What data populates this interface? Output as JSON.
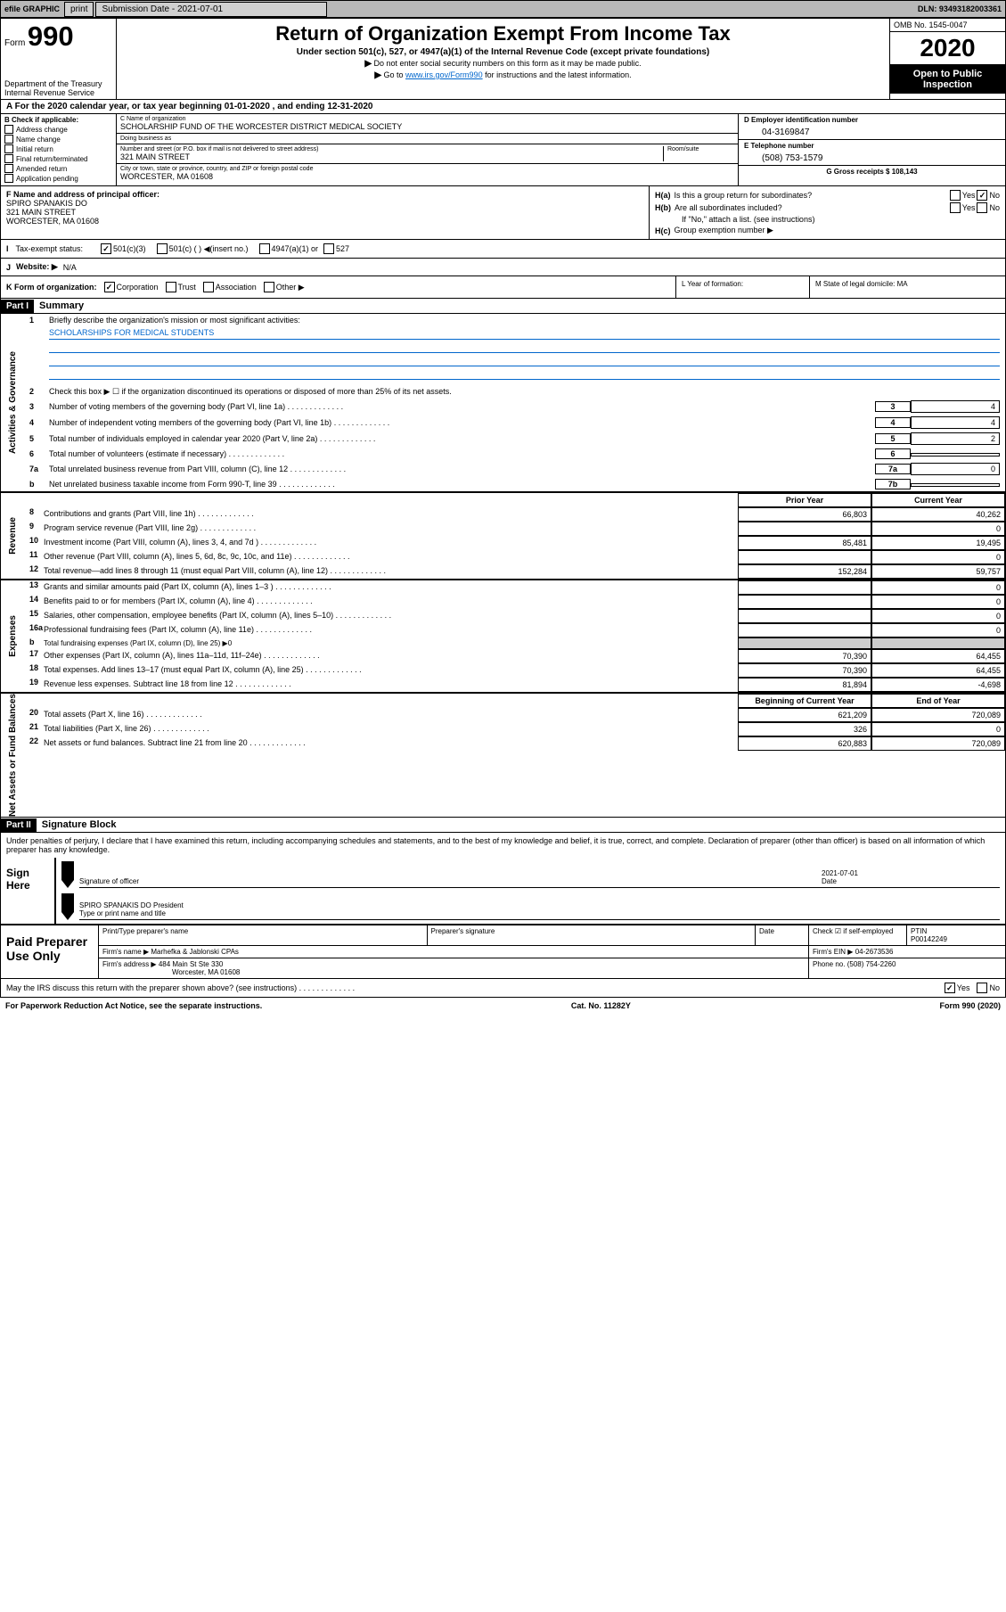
{
  "topbar": {
    "efile": "efile GRAPHIC",
    "print": "print",
    "submission_label": "Submission Date - 2021-07-01",
    "dln_label": "DLN: 93493182003361"
  },
  "header": {
    "form_label": "Form",
    "form_number": "990",
    "dept": "Department of the Treasury",
    "irs": "Internal Revenue Service",
    "title": "Return of Organization Exempt From Income Tax",
    "subtitle": "Under section 501(c), 527, or 4947(a)(1) of the Internal Revenue Code (except private foundations)",
    "line1": "Do not enter social security numbers on this form as it may be made public.",
    "line2_pre": "Go to ",
    "line2_link": "www.irs.gov/Form990",
    "line2_post": " for instructions and the latest information.",
    "omb": "OMB No. 1545-0047",
    "year": "2020",
    "open_public": "Open to Public",
    "inspection": "Inspection"
  },
  "period": {
    "text": "A   For the 2020 calendar year, or tax year beginning 01-01-2020    , and ending 12-31-2020"
  },
  "section_b": {
    "label": "B Check if applicable:",
    "items": [
      "Address change",
      "Name change",
      "Initial return",
      "Final return/terminated",
      "Amended return",
      "Application pending"
    ]
  },
  "section_c": {
    "name_label": "C Name of organization",
    "name": "SCHOLARSHIP FUND OF THE WORCESTER DISTRICT MEDICAL SOCIETY",
    "dba_label": "Doing business as",
    "dba": "",
    "addr_label": "Number and street (or P.O. box if mail is not delivered to street address)",
    "room_label": "Room/suite",
    "addr": "321 MAIN STREET",
    "city_label": "City or town, state or province, country, and ZIP or foreign postal code",
    "city": "WORCESTER, MA  01608"
  },
  "section_d": {
    "label": "D Employer identification number",
    "value": "04-3169847"
  },
  "section_e": {
    "label": "E Telephone number",
    "value": "(508) 753-1579"
  },
  "section_g": {
    "label": "G Gross receipts $ 108,143"
  },
  "officer": {
    "label": "F  Name and address of principal officer:",
    "name": "SPIRO SPANAKIS DO",
    "addr1": "321 MAIN STREET",
    "addr2": "WORCESTER, MA  01608"
  },
  "section_h": {
    "ha_label": "H(a)",
    "ha_text": "Is this a group return for subordinates?",
    "ha_yes": "Yes",
    "ha_no": "No",
    "hb_label": "H(b)",
    "hb_text": "Are all subordinates included?",
    "hb_note": "If \"No,\" attach a list. (see instructions)",
    "hc_label": "H(c)",
    "hc_text": "Group exemption number ▶"
  },
  "tax_exempt": {
    "letter": "I",
    "label": "Tax-exempt status:",
    "o1": "501(c)(3)",
    "o2": "501(c) (  )  ◀(insert no.)",
    "o3": "4947(a)(1) or",
    "o4": "527"
  },
  "website": {
    "letter": "J",
    "label": "Website: ▶",
    "value": "N/A"
  },
  "korg": {
    "label": "K Form of organization:",
    "o1": "Corporation",
    "o2": "Trust",
    "o3": "Association",
    "o4": "Other ▶",
    "l_label": "L Year of formation:",
    "m_label": "M State of legal domicile: MA"
  },
  "part1": {
    "label": "Part I",
    "title": "Summary"
  },
  "summary": {
    "vlabel1": "Activities & Governance",
    "line1_text": "Briefly describe the organization's mission or most significant activities:",
    "mission": "SCHOLARSHIPS FOR MEDICAL STUDENTS",
    "line2_text": "Check this box ▶ ☐  if the organization discontinued its operations or disposed of more than 25% of its net assets.",
    "line3_text": "Number of voting members of the governing body (Part VI, line 1a)",
    "line3_box": "3",
    "line3_val": "4",
    "line4_text": "Number of independent voting members of the governing body (Part VI, line 1b)",
    "line4_box": "4",
    "line4_val": "4",
    "line5_text": "Total number of individuals employed in calendar year 2020 (Part V, line 2a)",
    "line5_box": "5",
    "line5_val": "2",
    "line6_text": "Total number of volunteers (estimate if necessary)",
    "line6_box": "6",
    "line6_val": "",
    "line7a_text": "Total unrelated business revenue from Part VIII, column (C), line 12",
    "line7a_box": "7a",
    "line7a_val": "0",
    "line7b_text": "Net unrelated business taxable income from Form 990-T, line 39",
    "line7b_box": "7b",
    "line7b_val": "",
    "vlabel2": "Revenue",
    "prior_hdr": "Prior Year",
    "current_hdr": "Current Year",
    "rows_revenue": [
      {
        "n": "8",
        "t": "Contributions and grants (Part VIII, line 1h)",
        "p": "66,803",
        "c": "40,262"
      },
      {
        "n": "9",
        "t": "Program service revenue (Part VIII, line 2g)",
        "p": "",
        "c": "0"
      },
      {
        "n": "10",
        "t": "Investment income (Part VIII, column (A), lines 3, 4, and 7d )",
        "p": "85,481",
        "c": "19,495"
      },
      {
        "n": "11",
        "t": "Other revenue (Part VIII, column (A), lines 5, 6d, 8c, 9c, 10c, and 11e)",
        "p": "",
        "c": "0"
      },
      {
        "n": "12",
        "t": "Total revenue—add lines 8 through 11 (must equal Part VIII, column (A), line 12)",
        "p": "152,284",
        "c": "59,757"
      }
    ],
    "vlabel3": "Expenses",
    "rows_expenses": [
      {
        "n": "13",
        "t": "Grants and similar amounts paid (Part IX, column (A), lines 1–3 )",
        "p": "",
        "c": "0"
      },
      {
        "n": "14",
        "t": "Benefits paid to or for members (Part IX, column (A), line 4)",
        "p": "",
        "c": "0"
      },
      {
        "n": "15",
        "t": "Salaries, other compensation, employee benefits (Part IX, column (A), lines 5–10)",
        "p": "",
        "c": "0"
      },
      {
        "n": "16a",
        "t": "Professional fundraising fees (Part IX, column (A), line 11e)",
        "p": "",
        "c": "0"
      }
    ],
    "line16b": "Total fundraising expenses (Part IX, column (D), line 25) ▶0",
    "rows_expenses2": [
      {
        "n": "17",
        "t": "Other expenses (Part IX, column (A), lines 11a–11d, 11f–24e)",
        "p": "70,390",
        "c": "64,455"
      },
      {
        "n": "18",
        "t": "Total expenses. Add lines 13–17 (must equal Part IX, column (A), line 25)",
        "p": "70,390",
        "c": "64,455"
      },
      {
        "n": "19",
        "t": "Revenue less expenses. Subtract line 18 from line 12",
        "p": "81,894",
        "c": "-4,698"
      }
    ],
    "vlabel4": "Net Assets or Fund Balances",
    "begin_hdr": "Beginning of Current Year",
    "end_hdr": "End of Year",
    "rows_netassets": [
      {
        "n": "20",
        "t": "Total assets (Part X, line 16)",
        "p": "621,209",
        "c": "720,089"
      },
      {
        "n": "21",
        "t": "Total liabilities (Part X, line 26)",
        "p": "326",
        "c": "0"
      },
      {
        "n": "22",
        "t": "Net assets or fund balances. Subtract line 21 from line 20",
        "p": "620,883",
        "c": "720,089"
      }
    ]
  },
  "part2": {
    "label": "Part II",
    "title": "Signature Block"
  },
  "sig": {
    "intro": "Under penalties of perjury, I declare that I have examined this return, including accompanying schedules and statements, and to the best of my knowledge and belief, it is true, correct, and complete. Declaration of preparer (other than officer) is based on all information of which preparer has any knowledge.",
    "sign_here": "Sign Here",
    "sig_label": "Signature of officer",
    "date_val": "2021-07-01",
    "date_label": "Date",
    "name": "SPIRO SPANAKIS DO  President",
    "name_label": "Type or print name and title"
  },
  "preparer": {
    "label": "Paid Preparer Use Only",
    "col1": "Print/Type preparer's name",
    "col2": "Preparer's signature",
    "col3": "Date",
    "col4_check": "Check ☑ if self-employed",
    "col5_label": "PTIN",
    "col5_val": "P00142249",
    "firm_name_label": "Firm's name     ▶",
    "firm_name": "Marhefka & Jablonski CPAs",
    "firm_ein_label": "Firm's EIN ▶",
    "firm_ein": "04-2673536",
    "firm_addr_label": "Firm's address ▶",
    "firm_addr1": "484 Main St Ste 330",
    "firm_addr2": "Worcester, MA  01608",
    "phone_label": "Phone no.",
    "phone": "(508) 754-2260"
  },
  "irs_discuss": {
    "text": "May the IRS discuss this return with the preparer shown above? (see instructions)",
    "yes": "Yes",
    "no": "No"
  },
  "footer": {
    "left": "For Paperwork Reduction Act Notice, see the separate instructions.",
    "mid": "Cat. No. 11282Y",
    "right": "Form 990 (2020)"
  }
}
